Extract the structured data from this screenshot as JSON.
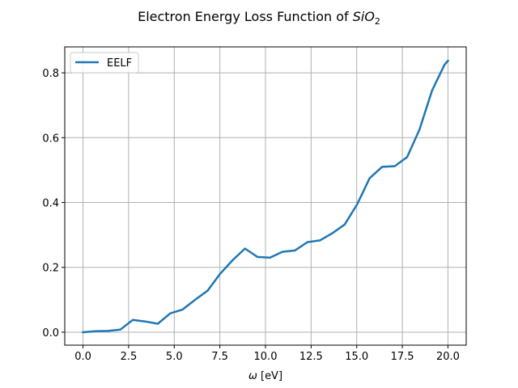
{
  "chart_data": {
    "type": "line",
    "title_prefix": "Electron Energy Loss Function of ",
    "title_math": "SiO",
    "title_subscript": "2",
    "xlabel_symbol": "ω",
    "xlabel_unit": " [eV]",
    "ylabel": "",
    "xlim": [
      -1.0,
      21.0
    ],
    "ylim": [
      -0.04,
      0.88
    ],
    "xticks": [
      0.0,
      2.5,
      5.0,
      7.5,
      10.0,
      12.5,
      15.0,
      17.5,
      20.0
    ],
    "xtick_labels": [
      "0.0",
      "2.5",
      "5.0",
      "7.5",
      "10.0",
      "12.5",
      "15.0",
      "17.5",
      "20.0"
    ],
    "yticks": [
      0.0,
      0.2,
      0.4,
      0.6,
      0.8
    ],
    "ytick_labels": [
      "0.0",
      "0.2",
      "0.4",
      "0.6",
      "0.8"
    ],
    "grid": true,
    "legend_position": "top-left",
    "series": [
      {
        "name": "EELF",
        "color": "#1f77b4",
        "x": [
          0.0,
          0.68,
          1.36,
          2.05,
          2.73,
          3.41,
          4.1,
          4.78,
          5.46,
          6.15,
          6.83,
          7.51,
          8.2,
          8.88,
          9.56,
          10.25,
          10.93,
          11.61,
          12.3,
          12.98,
          13.66,
          14.34,
          15.03,
          15.71,
          16.39,
          17.08,
          17.76,
          18.44,
          19.13,
          19.81,
          20.0
        ],
        "y": [
          0.0,
          0.003,
          0.004,
          0.008,
          0.038,
          0.033,
          0.026,
          0.058,
          0.07,
          0.1,
          0.128,
          0.18,
          0.222,
          0.258,
          0.232,
          0.23,
          0.248,
          0.252,
          0.278,
          0.283,
          0.305,
          0.332,
          0.395,
          0.475,
          0.51,
          0.512,
          0.54,
          0.625,
          0.745,
          0.825,
          0.837
        ]
      }
    ]
  }
}
